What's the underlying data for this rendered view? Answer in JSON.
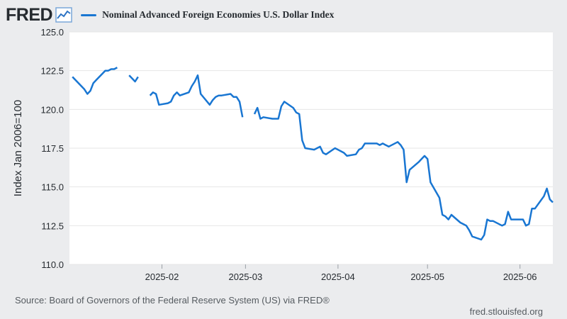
{
  "header": {
    "logo_text": "FRED",
    "logo_icon": "chart-line-icon"
  },
  "colors": {
    "series": "#1976d2",
    "plot_background": "#ffffff",
    "frame_background": "#ebecee",
    "gridline": "#e6e6e6"
  },
  "footer": {
    "source": "Source: Board of Governors of the Federal Reserve System (US) via FRED®",
    "url": "fred.stlouisfed.org"
  },
  "chart_data": {
    "type": "line",
    "title": "",
    "xlabel": "",
    "ylabel": "Index Jan 2006=100",
    "ylim": [
      110.0,
      125.0
    ],
    "xlim": [
      "2025-01-01",
      "2025-06-12"
    ],
    "grid": "horizontal",
    "legend_position": "top",
    "y_ticks": [
      "110.0",
      "112.5",
      "115.0",
      "117.5",
      "120.0",
      "122.5",
      "125.0"
    ],
    "x_ticks": [
      {
        "date": "2025-02-01",
        "label": "2025-02"
      },
      {
        "date": "2025-03-01",
        "label": "2025-03"
      },
      {
        "date": "2025-04-01",
        "label": "2025-04"
      },
      {
        "date": "2025-05-01",
        "label": "2025-05"
      },
      {
        "date": "2025-06-01",
        "label": "2025-06"
      }
    ],
    "series": [
      {
        "name": "Nominal Advanced Foreign Economies U.S. Dollar Index",
        "color": "#1976d2",
        "points": [
          [
            "2025-01-02",
            122.1
          ],
          [
            "2025-01-03",
            121.9
          ],
          [
            "2025-01-06",
            121.3
          ],
          [
            "2025-01-07",
            121.0
          ],
          [
            "2025-01-08",
            121.2
          ],
          [
            "2025-01-09",
            121.7
          ],
          [
            "2025-01-10",
            121.9
          ],
          [
            "2025-01-13",
            122.5
          ],
          [
            "2025-01-14",
            122.5
          ],
          [
            "2025-01-15",
            122.6
          ],
          [
            "2025-01-16",
            122.6
          ],
          [
            "2025-01-17",
            122.7
          ],
          [
            "2025-01-20",
            null
          ],
          [
            "2025-01-21",
            122.2
          ],
          [
            "2025-01-22",
            122.0
          ],
          [
            "2025-01-23",
            121.8
          ],
          [
            "2025-01-24",
            122.1
          ],
          [
            "2025-01-27",
            null
          ],
          [
            "2025-01-28",
            120.9
          ],
          [
            "2025-01-29",
            121.1
          ],
          [
            "2025-01-30",
            121.0
          ],
          [
            "2025-01-31",
            120.3
          ],
          [
            "2025-02-03",
            120.4
          ],
          [
            "2025-02-04",
            120.5
          ],
          [
            "2025-02-05",
            120.9
          ],
          [
            "2025-02-06",
            121.1
          ],
          [
            "2025-02-07",
            120.9
          ],
          [
            "2025-02-10",
            121.1
          ],
          [
            "2025-02-11",
            121.5
          ],
          [
            "2025-02-12",
            121.8
          ],
          [
            "2025-02-13",
            122.2
          ],
          [
            "2025-02-14",
            121.0
          ],
          [
            "2025-02-17",
            120.3
          ],
          [
            "2025-02-18",
            120.6
          ],
          [
            "2025-02-19",
            120.8
          ],
          [
            "2025-02-20",
            120.9
          ],
          [
            "2025-02-21",
            120.9
          ],
          [
            "2025-02-24",
            121.0
          ],
          [
            "2025-02-25",
            120.8
          ],
          [
            "2025-02-26",
            120.8
          ],
          [
            "2025-02-27",
            120.5
          ],
          [
            "2025-02-28",
            119.5
          ],
          [
            "2025-03-03",
            null
          ],
          [
            "2025-03-04",
            119.7
          ],
          [
            "2025-03-05",
            120.1
          ],
          [
            "2025-03-06",
            119.4
          ],
          [
            "2025-03-07",
            119.5
          ],
          [
            "2025-03-10",
            119.4
          ],
          [
            "2025-03-11",
            119.4
          ],
          [
            "2025-03-12",
            119.4
          ],
          [
            "2025-03-13",
            120.2
          ],
          [
            "2025-03-14",
            120.5
          ],
          [
            "2025-03-17",
            120.1
          ],
          [
            "2025-03-18",
            119.8
          ],
          [
            "2025-03-19",
            119.7
          ],
          [
            "2025-03-20",
            118.0
          ],
          [
            "2025-03-21",
            117.5
          ],
          [
            "2025-03-24",
            117.4
          ],
          [
            "2025-03-25",
            117.5
          ],
          [
            "2025-03-26",
            117.6
          ],
          [
            "2025-03-27",
            117.2
          ],
          [
            "2025-03-28",
            117.1
          ],
          [
            "2025-03-31",
            117.5
          ],
          [
            "2025-04-01",
            117.4
          ],
          [
            "2025-04-02",
            117.3
          ],
          [
            "2025-04-03",
            117.2
          ],
          [
            "2025-04-04",
            117.0
          ],
          [
            "2025-04-07",
            117.1
          ],
          [
            "2025-04-08",
            117.4
          ],
          [
            "2025-04-09",
            117.5
          ],
          [
            "2025-04-10",
            117.8
          ],
          [
            "2025-04-11",
            117.8
          ],
          [
            "2025-04-14",
            117.8
          ],
          [
            "2025-04-15",
            117.7
          ],
          [
            "2025-04-16",
            117.8
          ],
          [
            "2025-04-17",
            117.7
          ],
          [
            "2025-04-18",
            117.6
          ],
          [
            "2025-04-21",
            117.9
          ],
          [
            "2025-04-22",
            117.7
          ],
          [
            "2025-04-23",
            117.4
          ],
          [
            "2025-04-24",
            115.3
          ],
          [
            "2025-04-25",
            116.1
          ],
          [
            "2025-04-28",
            116.6
          ],
          [
            "2025-04-29",
            116.8
          ],
          [
            "2025-04-30",
            117.0
          ],
          [
            "2025-05-01",
            116.8
          ],
          [
            "2025-05-02",
            115.3
          ],
          [
            "2025-05-05",
            114.3
          ],
          [
            "2025-05-06",
            113.2
          ],
          [
            "2025-05-07",
            113.1
          ],
          [
            "2025-05-08",
            112.9
          ],
          [
            "2025-05-09",
            113.2
          ],
          [
            "2025-05-12",
            112.7
          ],
          [
            "2025-05-13",
            112.6
          ],
          [
            "2025-05-14",
            112.5
          ],
          [
            "2025-05-15",
            112.2
          ],
          [
            "2025-05-16",
            111.8
          ],
          [
            "2025-05-19",
            111.6
          ],
          [
            "2025-05-20",
            111.9
          ],
          [
            "2025-05-21",
            112.9
          ],
          [
            "2025-05-22",
            112.8
          ],
          [
            "2025-05-23",
            112.8
          ],
          [
            "2025-05-26",
            112.5
          ],
          [
            "2025-05-27",
            112.6
          ],
          [
            "2025-05-28",
            113.4
          ],
          [
            "2025-05-29",
            112.9
          ],
          [
            "2025-05-30",
            112.9
          ],
          [
            "2025-06-02",
            112.9
          ],
          [
            "2025-06-03",
            112.5
          ],
          [
            "2025-06-04",
            112.6
          ],
          [
            "2025-06-05",
            113.6
          ],
          [
            "2025-06-06",
            113.6
          ],
          [
            "2025-06-09",
            114.4
          ],
          [
            "2025-06-10",
            114.9
          ],
          [
            "2025-06-11",
            114.2
          ],
          [
            "2025-06-12",
            114.0
          ]
        ]
      }
    ]
  }
}
